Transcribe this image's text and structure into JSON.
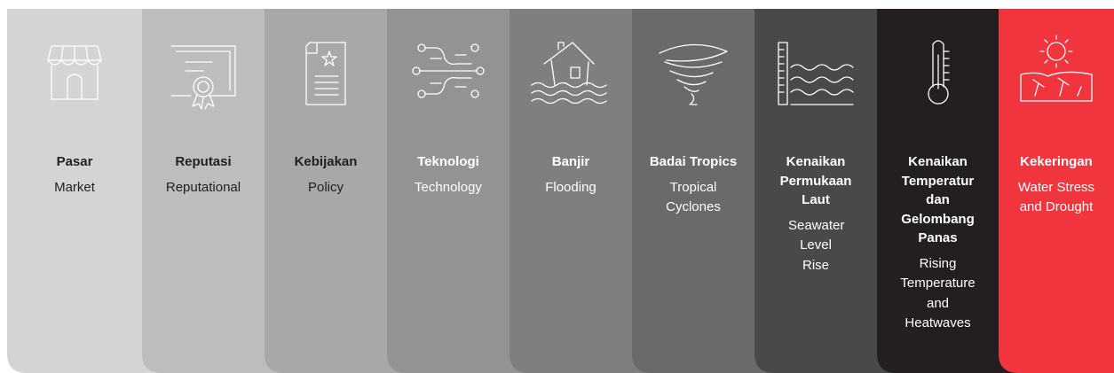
{
  "columns": [
    {
      "title": "Pasar",
      "subtitle": "Market"
    },
    {
      "title": "Reputasi",
      "subtitle": "Reputational"
    },
    {
      "title": "Kebijakan",
      "subtitle": "Policy"
    },
    {
      "title": "Teknologi",
      "subtitle": "Technology"
    },
    {
      "title": "Banjir",
      "subtitle": "Flooding"
    },
    {
      "title": "Badai Tropics",
      "subtitle": "Tropical Cyclones"
    },
    {
      "title": "Kenaikan Permukaan Laut",
      "subtitle": "Seawater Level Rise"
    },
    {
      "title": "Kenaikan Temperatur dan Gelombang Panas",
      "subtitle": "Rising Temperature and Heatwaves"
    },
    {
      "title": "Kekeringan",
      "subtitle": "Water Stress and Drought"
    }
  ]
}
